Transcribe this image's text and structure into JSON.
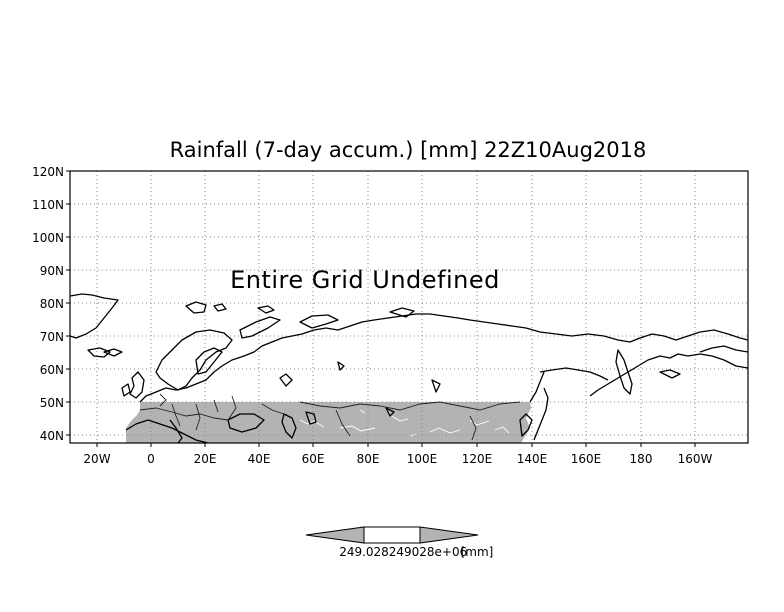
{
  "title": "Rainfall (7-day accum.) [mm] 22Z10Aug2018",
  "notice": "Entire Grid Undefined",
  "axes": {
    "lat_labels": [
      "120N",
      "110N",
      "100N",
      "90N",
      "80N",
      "70N",
      "60N",
      "50N",
      "40N"
    ],
    "lon_labels": [
      "20W",
      "0",
      "20E",
      "40E",
      "60E",
      "80E",
      "100E",
      "120E",
      "140E",
      "160E",
      "180",
      "160W"
    ]
  },
  "colorbar": {
    "label_left": "249.028",
    "label_mid": "249028e+06",
    "label_right": "[mm]",
    "colors": {
      "fill": "#b3b3b3",
      "center": "#ffffff"
    }
  },
  "colors": {
    "shaded_field": "#b3b3b3",
    "grid": "#8a8a8a"
  }
}
